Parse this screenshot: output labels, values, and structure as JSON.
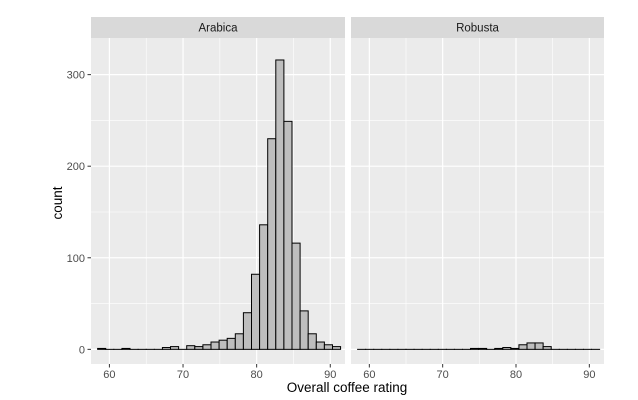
{
  "chart_data": {
    "type": "bar",
    "subtype": "faceted-histogram",
    "xlabel": "Overall coffee rating",
    "ylabel": "count",
    "xlim": [
      57.5,
      92
    ],
    "ylim": [
      -16,
      340
    ],
    "x_ticks": [
      60,
      70,
      80,
      90
    ],
    "y_ticks": [
      0,
      100,
      200,
      300
    ],
    "bin_start": 58.4,
    "bin_width": 1.1,
    "grid": true,
    "legend": "none",
    "colors": {
      "panel_background": "#ebebeb",
      "strip_background": "#d9d9d9",
      "grid": "#ffffff",
      "bar_fill": "#bebebe",
      "bar_stroke": "#000000"
    },
    "facets": [
      {
        "label": "Arabica",
        "counts": [
          1,
          0,
          0,
          1,
          0,
          0,
          0,
          0,
          2,
          3,
          0,
          4,
          3,
          5,
          8,
          10,
          12,
          17,
          40,
          82,
          136,
          230,
          316,
          249,
          116,
          42,
          17,
          8,
          5,
          3
        ]
      },
      {
        "label": "Robusta",
        "counts": [
          0,
          0,
          0,
          0,
          0,
          0,
          0,
          0,
          0,
          0,
          0,
          0,
          0,
          0,
          1,
          1,
          0,
          1,
          2,
          1,
          5,
          7,
          7,
          3,
          0,
          0,
          0,
          0,
          0,
          0
        ]
      }
    ]
  }
}
